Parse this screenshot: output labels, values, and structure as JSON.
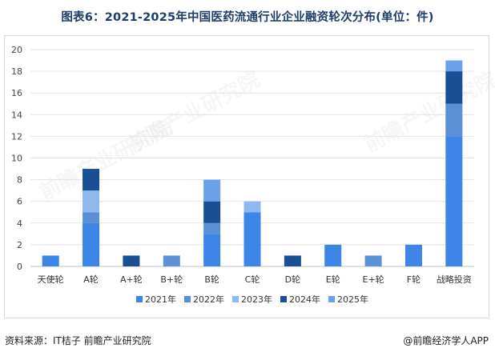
{
  "title": "图表6：2021-2025年中国医药流通行业企业融资轮次分布(单位：件)",
  "source": "资料来源：IT桔子 前瞻产业研究院",
  "brand": "@前瞻经济学人APP",
  "colors": {
    "2021年": "#3d85e6",
    "2022年": "#5b8fd6",
    "2023年": "#8fb8ee",
    "2024年": "#1a4f96",
    "2025年": "#6aa1e8"
  },
  "chart_data": {
    "type": "bar",
    "stacked": true,
    "categories": [
      "天使轮",
      "A轮",
      "A+轮",
      "B+轮",
      "B轮",
      "C轮",
      "D轮",
      "E轮",
      "E+轮",
      "F轮",
      "战略投资"
    ],
    "series": [
      {
        "name": "2021年",
        "values": [
          1,
          4,
          0,
          0,
          3,
          5,
          0,
          2,
          0,
          2,
          12
        ]
      },
      {
        "name": "2022年",
        "values": [
          0,
          1,
          0,
          1,
          1,
          0,
          0,
          0,
          1,
          0,
          3
        ]
      },
      {
        "name": "2023年",
        "values": [
          0,
          2,
          0,
          0,
          0,
          1,
          0,
          0,
          0,
          0,
          0
        ]
      },
      {
        "name": "2024年",
        "values": [
          0,
          2,
          1,
          0,
          2,
          0,
          1,
          0,
          0,
          0,
          3
        ]
      },
      {
        "name": "2025年",
        "values": [
          0,
          0,
          0,
          0,
          2,
          0,
          0,
          0,
          0,
          0,
          1
        ]
      }
    ],
    "ylim": [
      0,
      20
    ],
    "yticks": [
      0,
      2,
      4,
      6,
      8,
      10,
      12,
      14,
      16,
      18,
      20
    ],
    "grid": true,
    "legend_position": "bottom"
  }
}
